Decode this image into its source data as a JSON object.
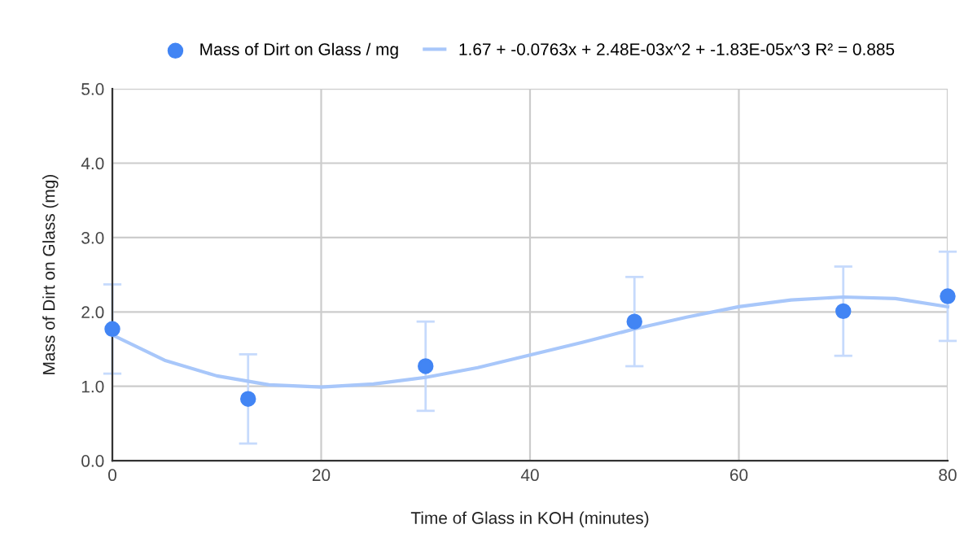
{
  "chart_data": {
    "type": "scatter",
    "xlabel": "Time of Glass in KOH (minutes)",
    "ylabel": "Mass of Dirt on Glass (mg)",
    "xlim": [
      0,
      80
    ],
    "xticks": [
      0,
      20,
      40,
      60,
      80
    ],
    "ylim": [
      0,
      5
    ],
    "yticks": [
      {
        "value": 0,
        "label": "0.0"
      },
      {
        "value": 1,
        "label": "1.0"
      },
      {
        "value": 2,
        "label": "2.0"
      },
      {
        "value": 3,
        "label": "3.0"
      },
      {
        "value": 4,
        "label": "4.0"
      },
      {
        "value": 5,
        "label": "5.0"
      }
    ],
    "grid": true,
    "legend": "top",
    "series": [
      {
        "name": "Mass of Dirt on Glass / mg",
        "color": "#4285f4",
        "marker": "circle",
        "x": [
          0,
          13,
          30,
          50,
          70,
          80
        ],
        "values": [
          1.77,
          0.83,
          1.27,
          1.87,
          2.01,
          2.21
        ],
        "errors": [
          0.6,
          0.6,
          0.6,
          0.6,
          0.6,
          0.6
        ]
      },
      {
        "name": "1.67 + -0.0763x + 2.48E-03x^2 + -1.83E-05x^3 R² = 0.885",
        "type": "line",
        "color": "#a8c7fa",
        "marker": "none",
        "x": [
          0,
          5,
          10,
          15,
          20,
          25,
          30,
          35,
          40,
          45,
          50,
          55,
          60,
          65,
          70,
          75,
          80
        ],
        "values": [
          1.69,
          1.35,
          1.14,
          1.02,
          0.99,
          1.03,
          1.12,
          1.25,
          1.42,
          1.59,
          1.77,
          1.93,
          2.07,
          2.16,
          2.2,
          2.18,
          2.07
        ]
      }
    ]
  }
}
